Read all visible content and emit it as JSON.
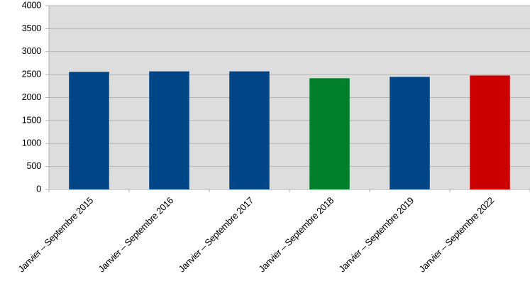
{
  "chart_data": {
    "type": "bar",
    "categories": [
      "Janvier – Septembre 2015",
      "Janvier – Septembre 2016",
      "Janvier – Septembre 2017",
      "Janvier – Septembre 2018",
      "Janvier – Septembre 2019",
      "Janvier – Septembre 2022"
    ],
    "values": [
      2560,
      2570,
      2570,
      2420,
      2450,
      2480
    ],
    "colors": [
      "#004586",
      "#004586",
      "#004586",
      "#00802b",
      "#004586",
      "#cc0000"
    ],
    "ylim": [
      0,
      4000
    ],
    "yticks": [
      0,
      500,
      1000,
      1500,
      2000,
      2500,
      3000,
      3500,
      4000
    ],
    "grid": true
  }
}
